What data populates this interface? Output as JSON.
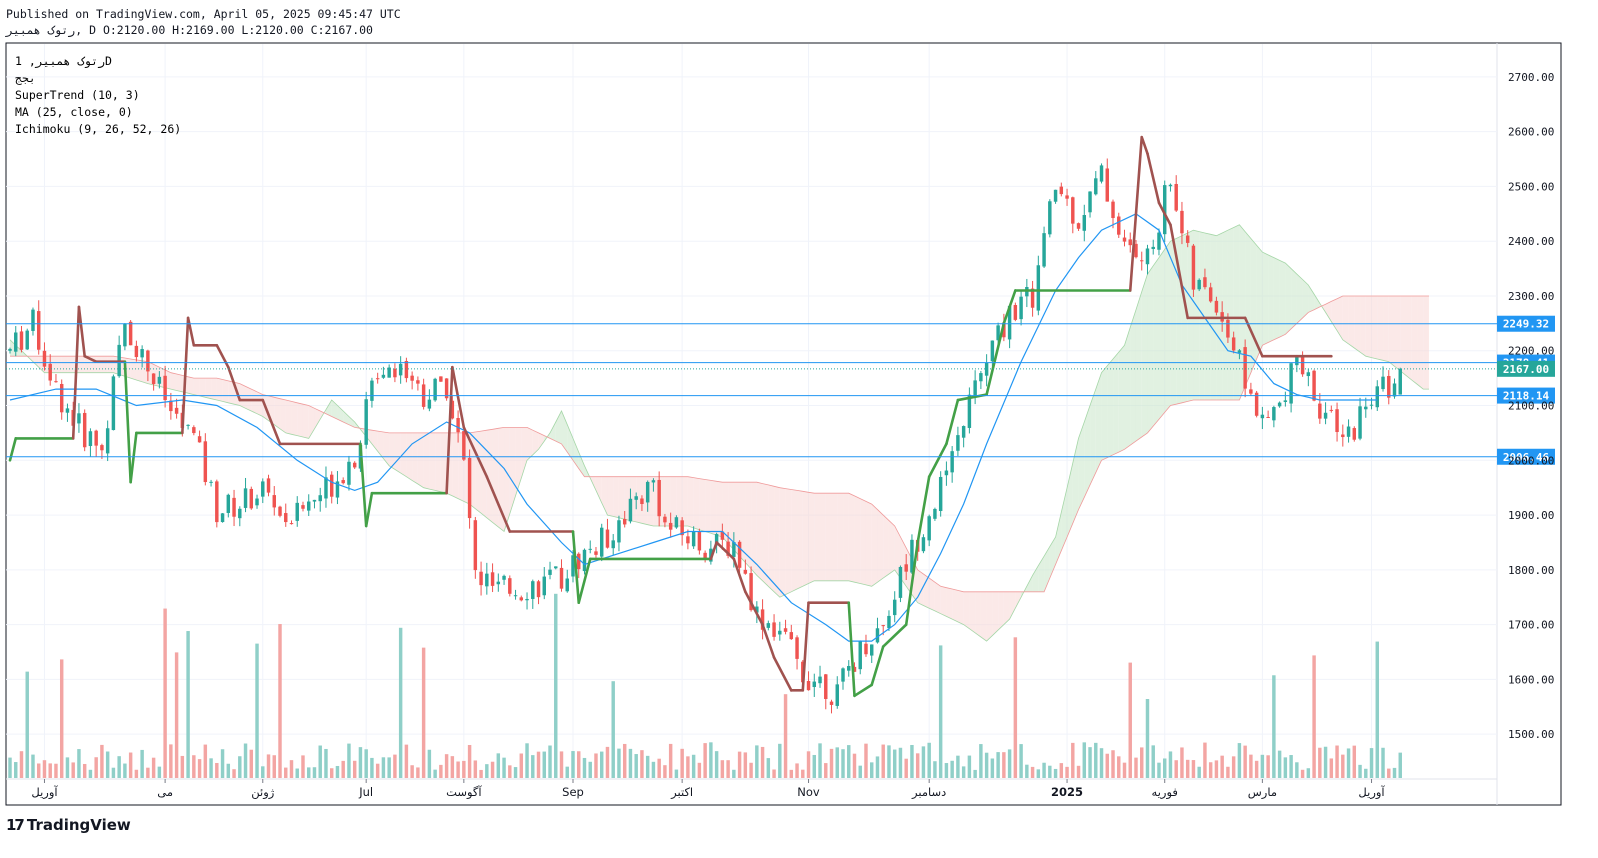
{
  "header": {
    "published": "Published on TradingView.com, April 05, 2025 09:45:47 UTC",
    "ohlc_line": "رتوک همبیر, D O:2120.00 H:2169.00 L:2120.00 C:2167.00"
  },
  "legend": {
    "symbol": "رتوک همبیر, 1D",
    "exchange": "بجج",
    "indicators": [
      "SuperTrend (10, 3)",
      "MA (25, close, 0)",
      "Ichimoku (9, 26, 52, 26)"
    ]
  },
  "footer": {
    "brand": "TradingView"
  },
  "colors": {
    "up": "#26a69a",
    "down": "#ef5350",
    "supertrend_up": "#43a047",
    "supertrend_down": "#a0524f",
    "ma": "#2196f3",
    "cloud_bull": "#c8e6c9",
    "cloud_bear": "#f8d7d5",
    "hline": "#2196f3",
    "volume_up": "#8fcfc8",
    "volume_down": "#f3a5a3",
    "grid": "#f0f3fa"
  },
  "chart_data": {
    "type": "candlestick",
    "title": "رتوک همبیر, 1D",
    "ylim": [
      1420,
      2760
    ],
    "y_ticks": [
      1500,
      1600,
      1700,
      1800,
      1900,
      2000,
      2100,
      2200,
      2300,
      2400,
      2500,
      2600,
      2700
    ],
    "y_tick_labels": [
      "1500.00",
      "1600.00",
      "1700.00",
      "1800.00",
      "1900.00",
      "2000.00",
      "2100.00",
      "2200.00",
      "2300.00",
      "2400.00",
      "2500.00",
      "2600.00",
      "2700.00"
    ],
    "x_axis_labels": [
      {
        "label": "آوریل",
        "i": 6
      },
      {
        "label": "می",
        "i": 27
      },
      {
        "label": "ژوئن",
        "i": 44
      },
      {
        "label": "Jul",
        "i": 62
      },
      {
        "label": "آگوست",
        "i": 79
      },
      {
        "label": "Sep",
        "i": 98
      },
      {
        "label": "اکتبر",
        "i": 117
      },
      {
        "label": "Nov",
        "i": 139
      },
      {
        "label": "دسامبر",
        "i": 160
      },
      {
        "label": "2025",
        "i": 184
      },
      {
        "label": "فوریه",
        "i": 201
      },
      {
        "label": "مارس",
        "i": 218
      },
      {
        "label": "آوریل",
        "i": 237
      }
    ],
    "horizontal_levels": [
      {
        "value": 2249.32,
        "label": "2249.32"
      },
      {
        "value": 2178.41,
        "label": "2178.41"
      },
      {
        "value": 2118.14,
        "label": "2118.14"
      },
      {
        "value": 2006.46,
        "label": "2006.46"
      }
    ],
    "last_price": {
      "value": 2167.0,
      "label": "2167.00"
    },
    "last_bar": {
      "open": 2120.0,
      "high": 2169.0,
      "low": 2120.0,
      "close": 2167.0
    },
    "anchors": [
      [
        0,
        2200
      ],
      [
        4,
        2250
      ],
      [
        8,
        2130
      ],
      [
        12,
        2060
      ],
      [
        16,
        2020
      ],
      [
        20,
        2250
      ],
      [
        24,
        2170
      ],
      [
        28,
        2090
      ],
      [
        32,
        2040
      ],
      [
        36,
        1910
      ],
      [
        40,
        1920
      ],
      [
        44,
        1950
      ],
      [
        48,
        1890
      ],
      [
        52,
        1920
      ],
      [
        56,
        1960
      ],
      [
        60,
        2010
      ],
      [
        64,
        2170
      ],
      [
        68,
        2180
      ],
      [
        72,
        2120
      ],
      [
        76,
        2140
      ],
      [
        79,
        1990
      ],
      [
        81,
        1790
      ],
      [
        85,
        1760
      ],
      [
        90,
        1770
      ],
      [
        95,
        1780
      ],
      [
        100,
        1830
      ],
      [
        104,
        1860
      ],
      [
        108,
        1920
      ],
      [
        112,
        1960
      ],
      [
        114,
        1880
      ],
      [
        118,
        1860
      ],
      [
        122,
        1840
      ],
      [
        126,
        1850
      ],
      [
        130,
        1720
      ],
      [
        134,
        1690
      ],
      [
        138,
        1610
      ],
      [
        141,
        1600
      ],
      [
        144,
        1570
      ],
      [
        146,
        1620
      ],
      [
        149,
        1670
      ],
      [
        152,
        1700
      ],
      [
        155,
        1790
      ],
      [
        158,
        1860
      ],
      [
        161,
        1930
      ],
      [
        164,
        1990
      ],
      [
        166,
        2080
      ],
      [
        170,
        2180
      ],
      [
        174,
        2270
      ],
      [
        178,
        2300
      ],
      [
        182,
        2500
      ],
      [
        186,
        2440
      ],
      [
        190,
        2520
      ],
      [
        194,
        2390
      ],
      [
        198,
        2360
      ],
      [
        202,
        2520
      ],
      [
        206,
        2320
      ],
      [
        210,
        2290
      ],
      [
        214,
        2180
      ],
      [
        218,
        2060
      ],
      [
        222,
        2110
      ],
      [
        224,
        2190
      ],
      [
        228,
        2100
      ],
      [
        232,
        2030
      ],
      [
        236,
        2100
      ],
      [
        240,
        2140
      ],
      [
        242,
        2167
      ]
    ],
    "supertrend": [
      [
        0,
        2000,
        "up"
      ],
      [
        1,
        2040,
        "up"
      ],
      [
        11,
        2040,
        "up"
      ],
      [
        12,
        2280,
        "down"
      ],
      [
        13,
        2190,
        "down"
      ],
      [
        15,
        2180,
        "down"
      ],
      [
        20,
        2180,
        "down"
      ],
      [
        21,
        1960,
        "up"
      ],
      [
        22,
        2050,
        "up"
      ],
      [
        30,
        2050,
        "up"
      ],
      [
        31,
        2260,
        "down"
      ],
      [
        32,
        2210,
        "down"
      ],
      [
        36,
        2210,
        "down"
      ],
      [
        38,
        2170,
        "down"
      ],
      [
        40,
        2110,
        "down"
      ],
      [
        44,
        2110,
        "down"
      ],
      [
        47,
        2030,
        "down"
      ],
      [
        61,
        2030,
        "down"
      ],
      [
        62,
        1880,
        "up"
      ],
      [
        63,
        1940,
        "up"
      ],
      [
        76,
        1940,
        "up"
      ],
      [
        77,
        2170,
        "down"
      ],
      [
        79,
        2060,
        "down"
      ],
      [
        83,
        1970,
        "down"
      ],
      [
        87,
        1870,
        "down"
      ],
      [
        98,
        1870,
        "down"
      ],
      [
        99,
        1740,
        "up"
      ],
      [
        101,
        1820,
        "up"
      ],
      [
        122,
        1820,
        "up"
      ],
      [
        123,
        1850,
        "down"
      ],
      [
        126,
        1820,
        "down"
      ],
      [
        128,
        1760,
        "down"
      ],
      [
        131,
        1700,
        "down"
      ],
      [
        133,
        1640,
        "down"
      ],
      [
        136,
        1580,
        "down"
      ],
      [
        138,
        1580,
        "down"
      ],
      [
        139,
        1740,
        "down"
      ],
      [
        146,
        1740,
        "down"
      ],
      [
        147,
        1570,
        "up"
      ],
      [
        150,
        1590,
        "up"
      ],
      [
        152,
        1660,
        "up"
      ],
      [
        156,
        1700,
        "up"
      ],
      [
        158,
        1850,
        "up"
      ],
      [
        160,
        1970,
        "up"
      ],
      [
        163,
        2030,
        "up"
      ],
      [
        165,
        2110,
        "up"
      ],
      [
        170,
        2120,
        "up"
      ],
      [
        173,
        2250,
        "up"
      ],
      [
        175,
        2310,
        "up"
      ],
      [
        195,
        2310,
        "up"
      ],
      [
        197,
        2590,
        "down"
      ],
      [
        198,
        2560,
        "down"
      ],
      [
        200,
        2470,
        "down"
      ],
      [
        202,
        2430,
        "down"
      ],
      [
        205,
        2260,
        "down"
      ],
      [
        215,
        2260,
        "down"
      ],
      [
        218,
        2190,
        "down"
      ],
      [
        230,
        2190,
        "down"
      ]
    ],
    "ma": [
      [
        0,
        2110
      ],
      [
        8,
        2130
      ],
      [
        15,
        2130
      ],
      [
        22,
        2100
      ],
      [
        30,
        2110
      ],
      [
        36,
        2100
      ],
      [
        43,
        2060
      ],
      [
        50,
        2000
      ],
      [
        56,
        1960
      ],
      [
        60,
        1945
      ],
      [
        64,
        1960
      ],
      [
        70,
        2030
      ],
      [
        76,
        2070
      ],
      [
        80,
        2050
      ],
      [
        86,
        1985
      ],
      [
        90,
        1920
      ],
      [
        96,
        1850
      ],
      [
        100,
        1810
      ],
      [
        106,
        1830
      ],
      [
        112,
        1850
      ],
      [
        118,
        1870
      ],
      [
        124,
        1870
      ],
      [
        130,
        1810
      ],
      [
        136,
        1740
      ],
      [
        142,
        1700
      ],
      [
        146,
        1670
      ],
      [
        150,
        1670
      ],
      [
        154,
        1700
      ],
      [
        158,
        1750
      ],
      [
        162,
        1830
      ],
      [
        166,
        1920
      ],
      [
        170,
        2030
      ],
      [
        176,
        2180
      ],
      [
        182,
        2310
      ],
      [
        186,
        2370
      ],
      [
        190,
        2420
      ],
      [
        196,
        2450
      ],
      [
        200,
        2420
      ],
      [
        204,
        2320
      ],
      [
        208,
        2260
      ],
      [
        212,
        2200
      ],
      [
        216,
        2190
      ],
      [
        220,
        2140
      ],
      [
        224,
        2120
      ],
      [
        228,
        2110
      ],
      [
        232,
        2110
      ],
      [
        238,
        2110
      ]
    ],
    "ichimoku_span_a": [
      [
        0,
        2220
      ],
      [
        6,
        2160
      ],
      [
        12,
        2160
      ],
      [
        18,
        2160
      ],
      [
        24,
        2140
      ],
      [
        28,
        2130
      ],
      [
        32,
        2120
      ],
      [
        36,
        2110
      ],
      [
        40,
        2100
      ],
      [
        44,
        2080
      ],
      [
        48,
        2050
      ],
      [
        52,
        2040
      ],
      [
        56,
        2110
      ],
      [
        60,
        2070
      ],
      [
        66,
        1990
      ],
      [
        72,
        1950
      ],
      [
        76,
        1940
      ],
      [
        80,
        1920
      ],
      [
        86,
        1870
      ],
      [
        90,
        2000
      ],
      [
        92,
        2020
      ],
      [
        94,
        2050
      ],
      [
        96,
        2090
      ],
      [
        100,
        1990
      ],
      [
        104,
        1900
      ],
      [
        112,
        1880
      ],
      [
        118,
        1880
      ],
      [
        124,
        1860
      ],
      [
        130,
        1790
      ],
      [
        134,
        1750
      ],
      [
        140,
        1780
      ],
      [
        146,
        1780
      ],
      [
        150,
        1770
      ],
      [
        154,
        1800
      ],
      [
        158,
        1740
      ],
      [
        162,
        1720
      ],
      [
        166,
        1700
      ],
      [
        170,
        1670
      ],
      [
        174,
        1710
      ],
      [
        178,
        1790
      ],
      [
        182,
        1860
      ],
      [
        186,
        2040
      ],
      [
        190,
        2160
      ],
      [
        194,
        2210
      ],
      [
        198,
        2340
      ],
      [
        202,
        2400
      ],
      [
        206,
        2420
      ],
      [
        210,
        2410
      ],
      [
        214,
        2430
      ],
      [
        218,
        2380
      ],
      [
        222,
        2360
      ],
      [
        226,
        2320
      ],
      [
        232,
        2220
      ],
      [
        236,
        2190
      ],
      [
        240,
        2180
      ],
      [
        246,
        2130
      ]
    ],
    "ichimoku_span_b": [
      [
        0,
        2190
      ],
      [
        6,
        2190
      ],
      [
        12,
        2190
      ],
      [
        18,
        2190
      ],
      [
        24,
        2180
      ],
      [
        28,
        2160
      ],
      [
        32,
        2150
      ],
      [
        36,
        2150
      ],
      [
        40,
        2140
      ],
      [
        44,
        2120
      ],
      [
        48,
        2110
      ],
      [
        52,
        2100
      ],
      [
        56,
        2080
      ],
      [
        60,
        2060
      ],
      [
        66,
        2050
      ],
      [
        72,
        2050
      ],
      [
        76,
        2050
      ],
      [
        80,
        2050
      ],
      [
        86,
        2060
      ],
      [
        90,
        2060
      ],
      [
        96,
        2030
      ],
      [
        100,
        1970
      ],
      [
        104,
        1970
      ],
      [
        108,
        1970
      ],
      [
        118,
        1970
      ],
      [
        124,
        1960
      ],
      [
        130,
        1960
      ],
      [
        134,
        1950
      ],
      [
        140,
        1940
      ],
      [
        146,
        1940
      ],
      [
        150,
        1920
      ],
      [
        154,
        1880
      ],
      [
        158,
        1800
      ],
      [
        162,
        1770
      ],
      [
        166,
        1760
      ],
      [
        172,
        1760
      ],
      [
        176,
        1760
      ],
      [
        180,
        1760
      ],
      [
        186,
        1910
      ],
      [
        190,
        2000
      ],
      [
        194,
        2020
      ],
      [
        198,
        2050
      ],
      [
        202,
        2100
      ],
      [
        206,
        2110
      ],
      [
        214,
        2110
      ],
      [
        218,
        2210
      ],
      [
        222,
        2230
      ],
      [
        226,
        2270
      ],
      [
        232,
        2300
      ],
      [
        238,
        2300
      ],
      [
        246,
        2300
      ]
    ]
  }
}
